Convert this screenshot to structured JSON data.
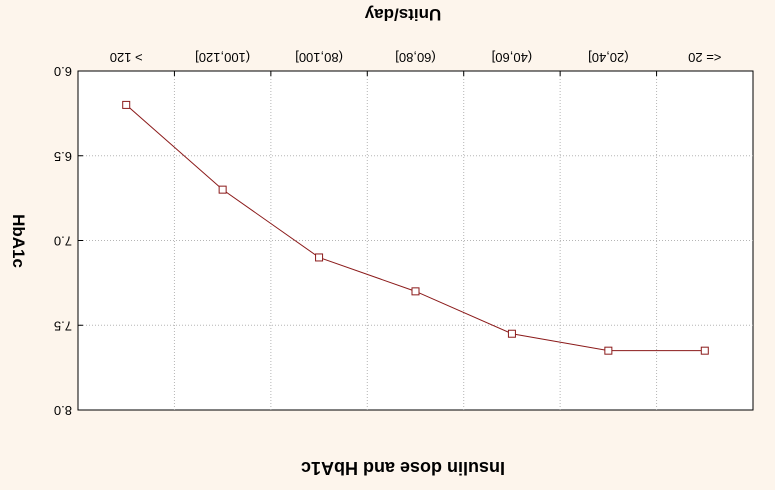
{
  "chart_data": {
    "type": "line",
    "title": "Insulin dose and HbA1c",
    "xlabel": "Units/day",
    "ylabel": "HbA1c",
    "categories": [
      "<= 20",
      "(20,40]",
      "(40,60]",
      "(60,80]",
      "(80,100]",
      "(100,120]",
      "> 120"
    ],
    "series": [
      {
        "values": [
          7.65,
          7.65,
          7.55,
          7.3,
          7.1,
          6.7,
          6.2
        ]
      }
    ],
    "y_ticks": [
      "6.0",
      "6.5",
      "7.0",
      "7.5",
      "8.0"
    ],
    "ylim": [
      6.0,
      8.0
    ],
    "grid": true,
    "line_color": "#8b1a1a",
    "marker": "open-square"
  }
}
